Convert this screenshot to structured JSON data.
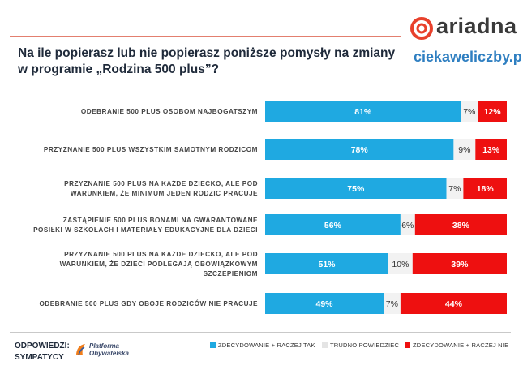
{
  "question": "Na ile popierasz lub nie popierasz poniższe pomysły na zmiany w programie „Rodzina 500 plus”?",
  "brand": {
    "name": "ariadna",
    "site": "ciekaweliczby.pl"
  },
  "footer": {
    "answers_label": "ODPOWIEDZI:",
    "group_label": "SYMPATYCY",
    "party_line1": "Platforma",
    "party_line2": "Obywatelska"
  },
  "colors": {
    "yes": "#1fa9e1",
    "neutral": "#f2f2f2",
    "no": "#ee1010"
  },
  "chart_data": {
    "type": "bar",
    "orientation": "horizontal",
    "stacked": true,
    "normalized": true,
    "title": "Na ile popierasz lub nie popierasz poniższe pomysły na zmiany w programie „Rodzina 500 plus”?",
    "categories": [
      [
        "ODEBRANIE 500 PLUS OSOBOM NAJBOGATSZYM"
      ],
      [
        "PRZYZNANIE 500 PLUS WSZYSTKIM SAMOTNYM RODZICOM"
      ],
      [
        "PRZYZNANIE 500 PLUS NA KAŻDE DZIECKO, ALE POD",
        "WARUNKIEM, ŻE MINIMUM JEDEN RODZIC PRACUJE"
      ],
      [
        "ZASTĄPIENIE 500 PLUS BONAMI NA GWARANTOWANE",
        "POSIŁKI W SZKOŁACH I MATERIAŁY EDUKACYJNE DLA DZIECI"
      ],
      [
        "PRZYZNANIE 500 PLUS NA KAŻDE DZIECKO, ALE POD",
        "WARUNKIEM, ŻE DZIECI PODLEGAJĄ OBOWIĄZKOWYM",
        "SZCZEPIENIOM"
      ],
      [
        "ODEBRANIE 500 PLUS  GDY OBOJE RODZICÓW NIE PRACUJE"
      ]
    ],
    "series": [
      {
        "name": "ZDECYDOWANIE + RACZEJ TAK",
        "values": [
          81,
          78,
          75,
          56,
          51,
          49
        ],
        "labels": [
          "81%",
          "78%",
          "75%",
          "56%",
          "51%",
          "49%"
        ]
      },
      {
        "name": "TRUDNO POWIEDZIEĆ",
        "values": [
          7,
          9,
          7,
          6,
          10,
          7
        ],
        "labels": [
          "7%",
          "9%",
          "7%",
          "6%",
          "10%",
          "7%"
        ]
      },
      {
        "name": "ZDECYDOWANIE + RACZEJ NIE",
        "values": [
          12,
          13,
          18,
          38,
          39,
          44
        ],
        "labels": [
          "12%",
          "13%",
          "18%",
          "38%",
          "39%",
          "44%"
        ]
      }
    ],
    "xlim": [
      0,
      100
    ],
    "legend_position": "bottom"
  }
}
